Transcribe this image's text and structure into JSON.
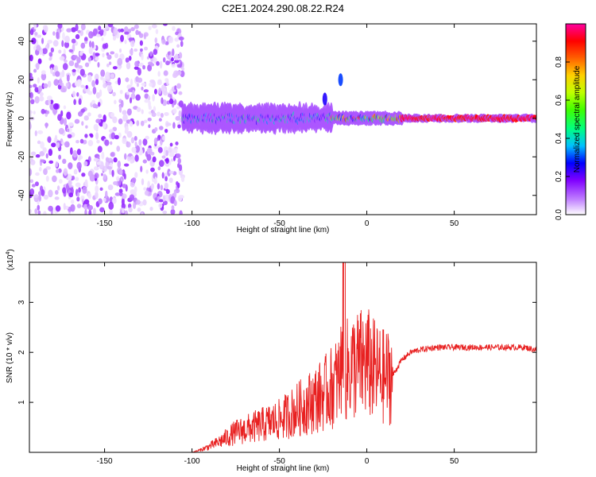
{
  "title": "C2E1.2024.290.08.22.R24",
  "chart_data": [
    {
      "type": "heatmap",
      "xlabel": "Height of straight line (km)",
      "ylabel": "Frequency (Hz)",
      "xlim": [
        -193,
        97
      ],
      "ylim": [
        -50,
        49
      ],
      "xticks": [
        -150,
        -100,
        -50,
        0,
        50
      ],
      "yticks": [
        -40,
        -20,
        0,
        20,
        40
      ],
      "colorbar": {
        "label": "Normalized spectral amplitude",
        "range": [
          0,
          1
        ],
        "ticks": [
          "0.0",
          "0.2",
          "0.4",
          "0.6",
          "0.8"
        ],
        "colormap": [
          "#ffffff",
          "#c080ff",
          "#8000ff",
          "#0000ff",
          "#00c0ff",
          "#00ff80",
          "#40ff00",
          "#c0ff00",
          "#ffd000",
          "#ff6000",
          "#ff0000",
          "#ff00a0"
        ]
      },
      "regions": [
        {
          "x": [
            -193,
            -105
          ],
          "freq_range": [
            -50,
            49
          ],
          "amplitude": [
            0.0,
            0.15
          ],
          "note_desc": "scattered noise"
        },
        {
          "x": [
            -105,
            -20
          ],
          "freq_center": 0,
          "freq_halfwidth": [
            4,
            8
          ],
          "amplitude": [
            0.1,
            0.5
          ]
        },
        {
          "x": [
            -20,
            20
          ],
          "freq_center": 0,
          "freq_halfwidth": 3,
          "amplitude": [
            0.2,
            0.9
          ]
        },
        {
          "x": [
            20,
            97
          ],
          "freq_center": 0,
          "freq_halfwidth": 1.5,
          "amplitude": [
            0.85,
            1.0
          ]
        }
      ],
      "spots": [
        {
          "x": -15,
          "freq": 20,
          "amplitude": 0.3
        },
        {
          "x": -24,
          "freq": 10,
          "amplitude": 0.25
        }
      ]
    },
    {
      "type": "line",
      "xlabel": "Height of straight line (km)",
      "ylabel": "SNR (10 * v/v)",
      "y_multiplier": "x10^4",
      "xlim": [
        -193,
        97
      ],
      "ylim": [
        0,
        3.8
      ],
      "xticks": [
        -150,
        -100,
        -50,
        0,
        50
      ],
      "yticks": [
        1,
        2,
        3
      ],
      "series": [
        {
          "color": "#e82020",
          "x": [
            -193,
            -150,
            -100,
            -95,
            -90,
            -85,
            -80,
            -75,
            -70,
            -65,
            -60,
            -55,
            -50,
            -45,
            -40,
            -35,
            -30,
            -25,
            -20,
            -15,
            -13,
            -12,
            -10,
            -5,
            0,
            5,
            10,
            15,
            20,
            25,
            30,
            40,
            50,
            60,
            70,
            80,
            90,
            97
          ],
          "y": [
            0,
            0,
            0,
            0.05,
            0.12,
            0.2,
            0.3,
            0.4,
            0.45,
            0.5,
            0.55,
            0.6,
            0.65,
            0.75,
            0.85,
            0.95,
            1.05,
            1.15,
            1.3,
            1.5,
            3.8,
            1.6,
            1.7,
            1.75,
            1.8,
            1.6,
            1.5,
            1.55,
            1.85,
            2.0,
            2.05,
            2.1,
            2.1,
            2.1,
            2.1,
            2.1,
            2.1,
            2.05
          ]
        }
      ]
    }
  ]
}
